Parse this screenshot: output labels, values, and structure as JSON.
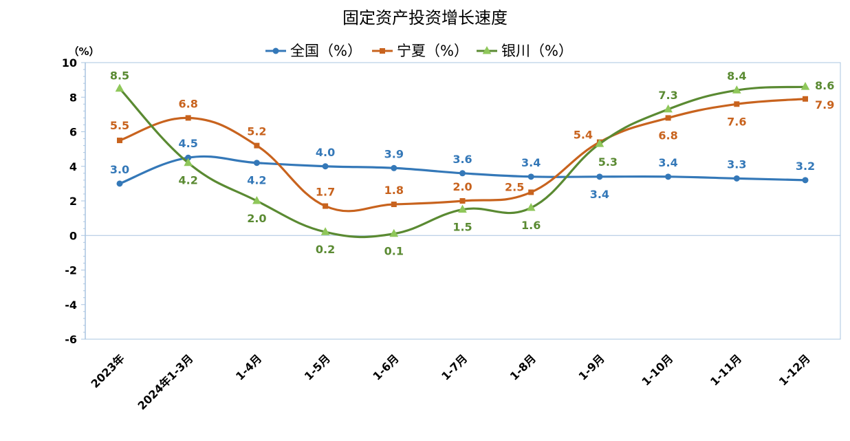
{
  "chart_data": {
    "type": "line",
    "title": "固定资产投资增长速度",
    "ylabel": "（%）",
    "ylim": [
      -6,
      10
    ],
    "yticks": [
      10,
      8,
      6,
      4,
      2,
      0,
      -2,
      -4,
      -6
    ],
    "grid": false,
    "legend": "top",
    "smooth": true,
    "categories": [
      "2023年",
      "2024年1-3月",
      "1-4月",
      "1-5月",
      "1-6月",
      "1-7月",
      "1-8月",
      "1-9月",
      "1-10月",
      "1-11月",
      "1-12月"
    ],
    "series": [
      {
        "name": "全国（%）",
        "color": "#3478b8",
        "marker": "circle",
        "values": [
          3.0,
          4.5,
          4.2,
          4.0,
          3.9,
          3.6,
          3.4,
          3.4,
          3.4,
          3.3,
          3.2
        ]
      },
      {
        "name": "宁夏（%）",
        "color": "#c8631e",
        "marker": "square",
        "values": [
          5.5,
          6.8,
          5.2,
          1.7,
          1.8,
          2.0,
          2.5,
          5.4,
          6.8,
          7.6,
          7.9
        ]
      },
      {
        "name": "银川（%）",
        "color": "#5a8a32",
        "marker": "triangle",
        "values": [
          8.5,
          4.2,
          2.0,
          0.2,
          0.1,
          1.5,
          1.6,
          5.3,
          7.3,
          8.4,
          8.6
        ]
      }
    ],
    "data_labels": [
      [
        "3.0",
        "4.5",
        "4.2",
        "4.0",
        "3.9",
        "3.6",
        "3.4",
        "3.4",
        "3.4",
        "3.3",
        "3.2"
      ],
      [
        "5.5",
        "6.8",
        "5.2",
        "1.7",
        "1.8",
        "2.0",
        "2.5",
        "5.4",
        "6.8",
        "7.6",
        "7.9"
      ],
      [
        "8.5",
        "4.2",
        "2.0",
        "0.2",
        "0.1",
        "1.5",
        "1.6",
        "5.3",
        "7.3",
        "8.4",
        "8.6"
      ]
    ]
  }
}
